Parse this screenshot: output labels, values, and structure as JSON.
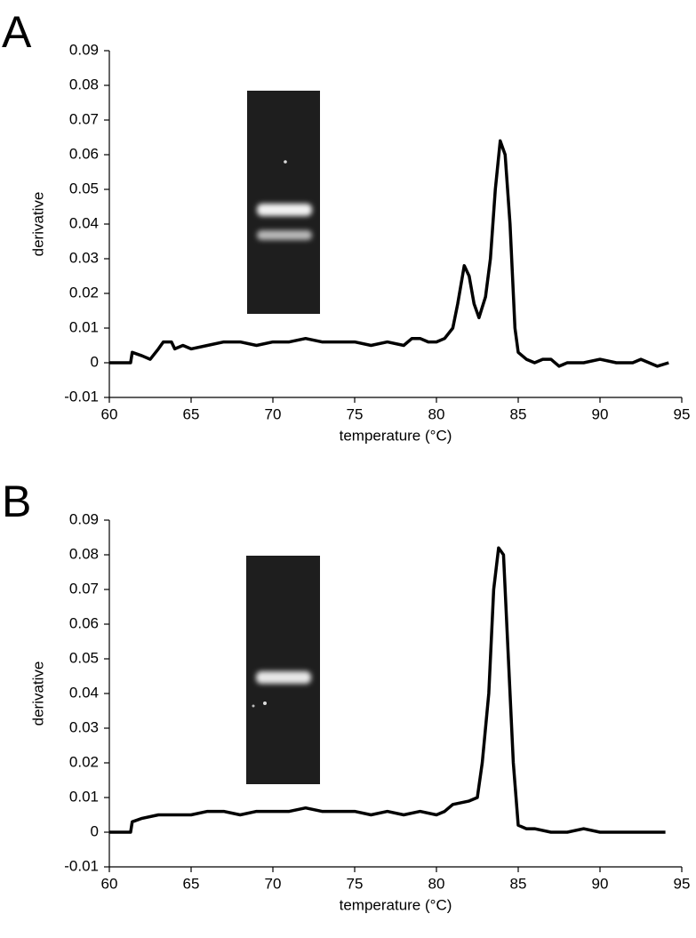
{
  "chart_data": [
    {
      "type": "line",
      "panel_label": "A",
      "x_label": "temperature (°C)",
      "y_label": "derivative",
      "xlim": [
        60,
        95
      ],
      "xticks": [
        60,
        65,
        70,
        75,
        80,
        85,
        90,
        95
      ],
      "ylim": [
        -0.01,
        0.09
      ],
      "yticks": [
        -0.01,
        0,
        0.01,
        0.02,
        0.03,
        0.04,
        0.05,
        0.06,
        0.07,
        0.08,
        0.09
      ],
      "color": "#000000",
      "x": [
        60,
        61.3,
        61.4,
        62,
        62.5,
        63,
        63.3,
        63.8,
        64,
        64.5,
        65,
        66,
        67,
        68,
        69,
        70,
        71,
        72,
        73,
        74,
        75,
        76,
        77,
        78,
        78.5,
        79,
        79.5,
        80,
        80.5,
        81,
        81.3,
        81.7,
        82,
        82.3,
        82.6,
        83,
        83.3,
        83.6,
        83.9,
        84.2,
        84.5,
        84.8,
        85,
        85.5,
        86,
        86.5,
        87,
        87.5,
        88,
        89,
        90,
        91,
        92,
        92.5,
        93,
        93.5,
        94.2
      ],
      "values": [
        0,
        0,
        0.003,
        0.002,
        0.001,
        0.004,
        0.006,
        0.006,
        0.004,
        0.005,
        0.004,
        0.005,
        0.006,
        0.006,
        0.005,
        0.006,
        0.006,
        0.007,
        0.006,
        0.006,
        0.006,
        0.005,
        0.006,
        0.005,
        0.007,
        0.007,
        0.006,
        0.006,
        0.007,
        0.01,
        0.017,
        0.028,
        0.025,
        0.017,
        0.013,
        0.019,
        0.03,
        0.05,
        0.064,
        0.06,
        0.04,
        0.01,
        0.003,
        0.001,
        0,
        0.001,
        0.001,
        -0.001,
        0,
        0,
        0.001,
        0,
        0,
        0.001,
        0,
        -0.001,
        0
      ]
    },
    {
      "type": "line",
      "panel_label": "B",
      "x_label": "temperature (°C)",
      "y_label": "derivative",
      "xlim": [
        60,
        95
      ],
      "xticks": [
        60,
        65,
        70,
        75,
        80,
        85,
        90,
        95
      ],
      "ylim": [
        -0.01,
        0.09
      ],
      "yticks": [
        -0.01,
        0,
        0.01,
        0.02,
        0.03,
        0.04,
        0.05,
        0.06,
        0.07,
        0.08,
        0.09
      ],
      "color": "#000000",
      "x": [
        60,
        61.3,
        61.4,
        62,
        63,
        64,
        65,
        66,
        67,
        68,
        69,
        70,
        71,
        72,
        73,
        74,
        75,
        76,
        77,
        78,
        79,
        80,
        80.5,
        81,
        82,
        82.5,
        82.8,
        83.2,
        83.5,
        83.8,
        84.1,
        84.4,
        84.7,
        85,
        85.5,
        86,
        87,
        88,
        89,
        90,
        91,
        92,
        93,
        94
      ],
      "values": [
        0,
        0,
        0.003,
        0.004,
        0.005,
        0.005,
        0.005,
        0.006,
        0.006,
        0.005,
        0.006,
        0.006,
        0.006,
        0.007,
        0.006,
        0.006,
        0.006,
        0.005,
        0.006,
        0.005,
        0.006,
        0.005,
        0.006,
        0.008,
        0.009,
        0.01,
        0.02,
        0.04,
        0.07,
        0.082,
        0.08,
        0.05,
        0.02,
        0.002,
        0.001,
        0.001,
        0,
        0,
        0.001,
        0,
        0,
        0,
        0,
        0
      ]
    }
  ]
}
